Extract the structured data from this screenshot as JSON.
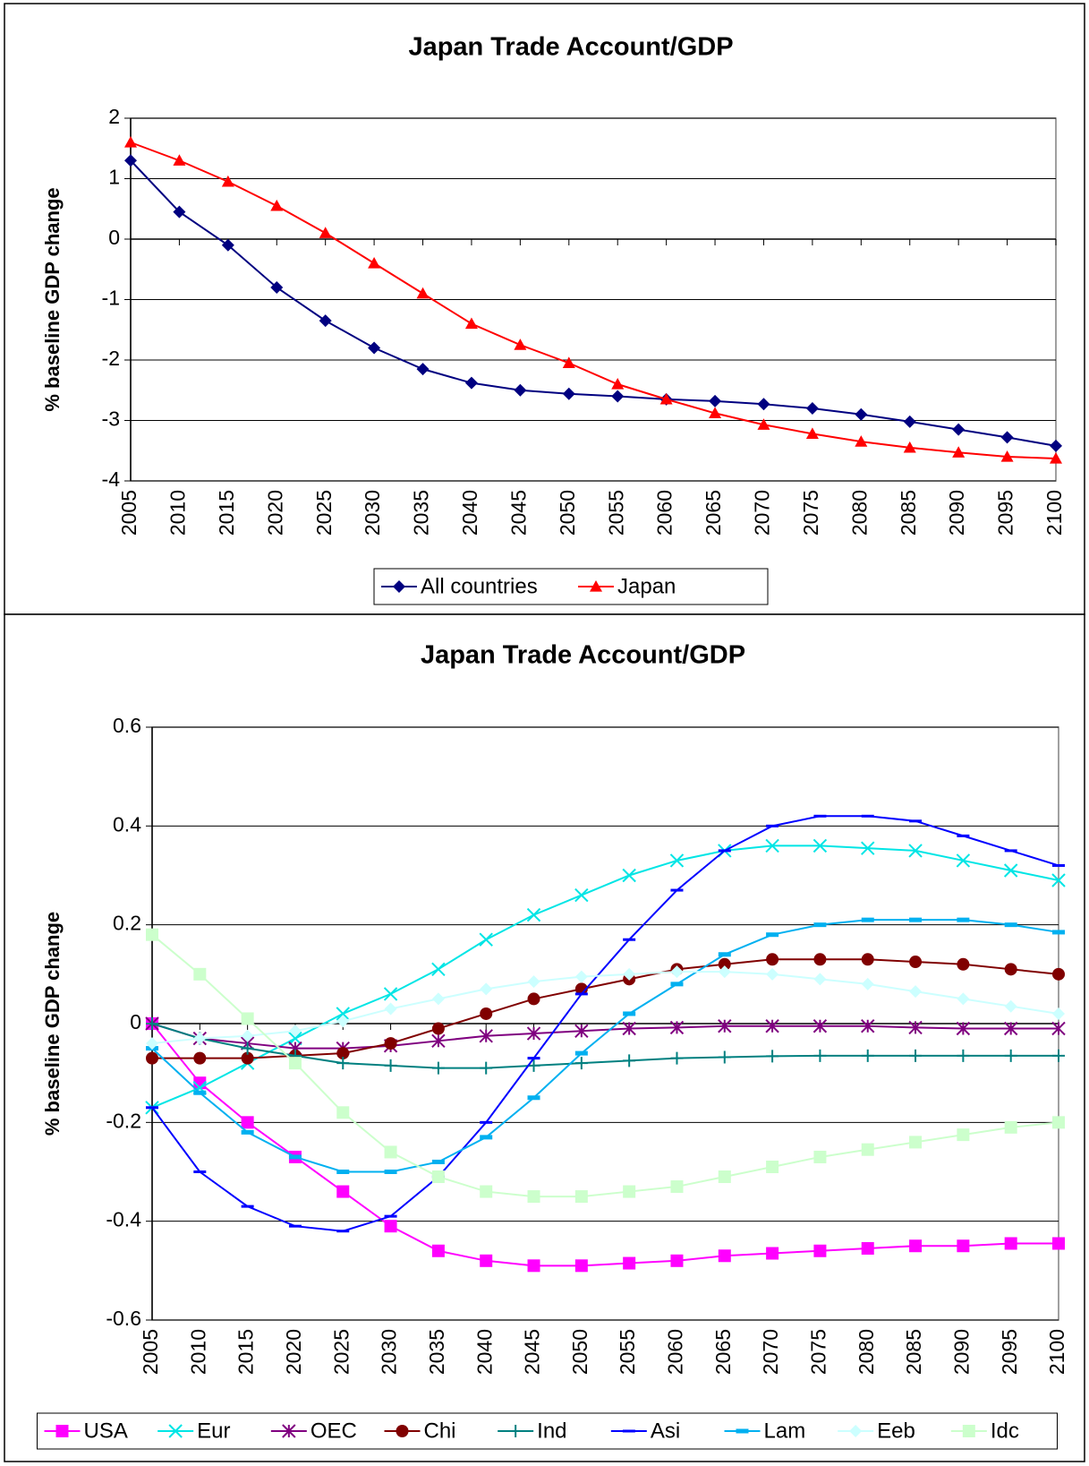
{
  "chart_data": [
    {
      "type": "line",
      "title": "Japan Trade Account/GDP",
      "y_label": "% baseline GDP change",
      "categories": [
        "2005",
        "2010",
        "2015",
        "2020",
        "2025",
        "2030",
        "2035",
        "2040",
        "2045",
        "2050",
        "2055",
        "2060",
        "2065",
        "2070",
        "2075",
        "2080",
        "2085",
        "2090",
        "2095",
        "2100"
      ],
      "ylim": [
        -4,
        2
      ],
      "yticks": [
        -4,
        -3,
        -2,
        -1,
        0,
        1,
        2
      ],
      "grid": true,
      "legend": "bottom",
      "series": [
        {
          "name": "All countries",
          "color": "#000080",
          "marker": "diamond",
          "values": [
            1.3,
            0.45,
            -0.1,
            -0.8,
            -1.35,
            -1.8,
            -2.15,
            -2.38,
            -2.5,
            -2.56,
            -2.6,
            -2.65,
            -2.68,
            -2.73,
            -2.8,
            -2.9,
            -3.02,
            -3.15,
            -3.28,
            -3.42
          ]
        },
        {
          "name": "Japan",
          "color": "#ff0000",
          "marker": "triangle",
          "values": [
            1.6,
            1.3,
            0.95,
            0.55,
            0.1,
            -0.4,
            -0.9,
            -1.4,
            -1.75,
            -2.05,
            -2.4,
            -2.65,
            -2.88,
            -3.07,
            -3.22,
            -3.35,
            -3.45,
            -3.53,
            -3.6,
            -3.63
          ]
        }
      ]
    },
    {
      "type": "line",
      "title": "Japan Trade Account/GDP",
      "y_label": "% baseline GDP change",
      "categories": [
        "2005",
        "2010",
        "2015",
        "2020",
        "2025",
        "2030",
        "2035",
        "2040",
        "2045",
        "2050",
        "2055",
        "2060",
        "2065",
        "2070",
        "2075",
        "2080",
        "2085",
        "2090",
        "2095",
        "2100"
      ],
      "ylim": [
        -0.6,
        0.6
      ],
      "yticks": [
        -0.6,
        -0.4,
        -0.2,
        0,
        0.2,
        0.4,
        0.6
      ],
      "grid": true,
      "legend": "bottom",
      "series": [
        {
          "name": "USA",
          "color": "#ff00ff",
          "marker": "square",
          "values": [
            0,
            -0.12,
            -0.2,
            -0.27,
            -0.34,
            -0.41,
            -0.46,
            -0.48,
            -0.49,
            -0.49,
            -0.485,
            -0.48,
            -0.47,
            -0.465,
            -0.46,
            -0.455,
            -0.45,
            -0.45,
            -0.445,
            -0.445
          ]
        },
        {
          "name": "Eur",
          "color": "#00e5e5",
          "marker": "x",
          "values": [
            -0.17,
            -0.13,
            -0.08,
            -0.03,
            0.02,
            0.06,
            0.11,
            0.17,
            0.22,
            0.26,
            0.3,
            0.33,
            0.35,
            0.36,
            0.36,
            0.355,
            0.35,
            0.33,
            0.31,
            0.29
          ]
        },
        {
          "name": "OEC",
          "color": "#800080",
          "marker": "star",
          "values": [
            0,
            -0.03,
            -0.04,
            -0.05,
            -0.05,
            -0.045,
            -0.035,
            -0.025,
            -0.02,
            -0.015,
            -0.01,
            -0.008,
            -0.005,
            -0.005,
            -0.005,
            -0.005,
            -0.008,
            -0.01,
            -0.01,
            -0.01
          ]
        },
        {
          "name": "Chi",
          "color": "#800000",
          "marker": "circle",
          "values": [
            -0.07,
            -0.07,
            -0.07,
            -0.065,
            -0.06,
            -0.04,
            -0.01,
            0.02,
            0.05,
            0.07,
            0.09,
            0.11,
            0.12,
            0.13,
            0.13,
            0.13,
            0.125,
            0.12,
            0.11,
            0.1
          ]
        },
        {
          "name": "Ind",
          "color": "#008080",
          "marker": "plus",
          "values": [
            0,
            -0.03,
            -0.05,
            -0.065,
            -0.08,
            -0.085,
            -0.09,
            -0.09,
            -0.085,
            -0.08,
            -0.075,
            -0.07,
            -0.068,
            -0.066,
            -0.065,
            -0.065,
            -0.065,
            -0.065,
            -0.065,
            -0.065
          ]
        },
        {
          "name": "Asi",
          "color": "#0000ff",
          "marker": "dash",
          "values": [
            -0.17,
            -0.3,
            -0.37,
            -0.41,
            -0.42,
            -0.39,
            -0.31,
            -0.2,
            -0.07,
            0.06,
            0.17,
            0.27,
            0.35,
            0.4,
            0.42,
            0.42,
            0.41,
            0.38,
            0.35,
            0.32
          ]
        },
        {
          "name": "Lam",
          "color": "#00b0f0",
          "marker": "bar",
          "values": [
            -0.05,
            -0.14,
            -0.22,
            -0.27,
            -0.3,
            -0.3,
            -0.28,
            -0.23,
            -0.15,
            -0.06,
            0.02,
            0.08,
            0.14,
            0.18,
            0.2,
            0.21,
            0.21,
            0.21,
            0.2,
            0.185
          ]
        },
        {
          "name": "Eeb",
          "color": "#ccffff",
          "marker": "diamond",
          "values": [
            -0.04,
            -0.03,
            -0.025,
            -0.015,
            0.005,
            0.03,
            0.05,
            0.07,
            0.085,
            0.095,
            0.1,
            0.105,
            0.105,
            0.1,
            0.09,
            0.08,
            0.065,
            0.05,
            0.035,
            0.02
          ]
        },
        {
          "name": "Idc",
          "color": "#ccffcc",
          "marker": "square",
          "values": [
            0.18,
            0.1,
            0.01,
            -0.08,
            -0.18,
            -0.26,
            -0.31,
            -0.34,
            -0.35,
            -0.35,
            -0.34,
            -0.33,
            -0.31,
            -0.29,
            -0.27,
            -0.255,
            -0.24,
            -0.225,
            -0.21,
            -0.2
          ]
        }
      ]
    }
  ]
}
